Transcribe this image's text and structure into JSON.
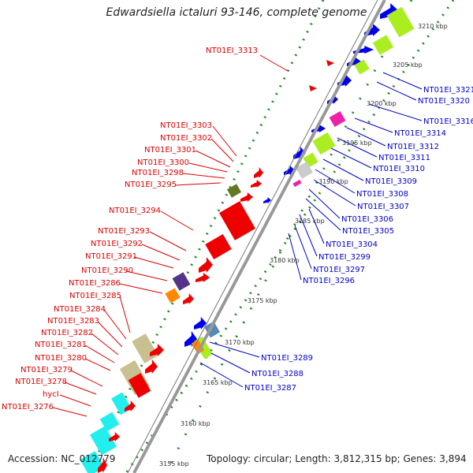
{
  "title": "Edwardsiella ictaluri 93-146, complete genome",
  "footer": {
    "accession": "Accession: NC_012779",
    "summary": "Topology: circular; Length: 3,812,315 bp; Genes: 3,894"
  },
  "colors": {
    "reverse_label": "#dd0000",
    "forward_label": "#0000cc",
    "backbone": "#999999",
    "tick": "#228b22",
    "red_gene": "#ee0000",
    "blue_gene": "#0000ee",
    "green_gene": "#aaee22",
    "cyan_gene": "#22eeee",
    "khaki_gene": "#c8c090",
    "purple_gene": "#553388",
    "orange_gene": "#ff8800",
    "olive_gene": "#667722",
    "magenta_gene": "#ee22aa",
    "gray_gene": "#cccccc",
    "steel_gene": "#5588bb"
  },
  "scale_labels": [
    "3210 kbp",
    "3205 kbp",
    "3200 kbp",
    "3195 kbp",
    "3190 kbp",
    "3185 kbp",
    "3180 kbp",
    "3175 kbp",
    "3170 kbp",
    "3165 kbp",
    "3160 kbp",
    "3155 kbp"
  ],
  "reverse_genes": [
    "NT01EI_3313",
    "NT01EI_3303",
    "NT01EI_3302",
    "NT01EI_3301",
    "NT01EI_3300",
    "NT01EI_3298",
    "NT01EI_3295",
    "NT01EI_3294",
    "NT01EI_3293",
    "NT01EI_3292",
    "NT01EI_3291",
    "NT01EI_3290",
    "NT01EI_3286",
    "NT01EI_3285",
    "NT01EI_3284",
    "NT01EI_3283",
    "NT01EI_3282",
    "NT01EI_3281",
    "NT01EI_3280",
    "NT01EI_3279",
    "NT01EI_3278",
    "hycI",
    "NT01EI_3276"
  ],
  "forward_genes": [
    "NT01EI_3321",
    "NT01EI_3320",
    "NT01EI_3316",
    "NT01EI_3314",
    "NT01EI_3312",
    "NT01EI_3311",
    "NT01EI_3310",
    "NT01EI_3309",
    "NT01EI_3308",
    "NT01EI_3307",
    "NT01EI_3306",
    "NT01EI_3305",
    "NT01EI_3304",
    "NT01EI_3299",
    "NT01EI_3297",
    "NT01EI_3296",
    "NT01EI_3289",
    "NT01EI_3288",
    "NT01EI_3287"
  ]
}
